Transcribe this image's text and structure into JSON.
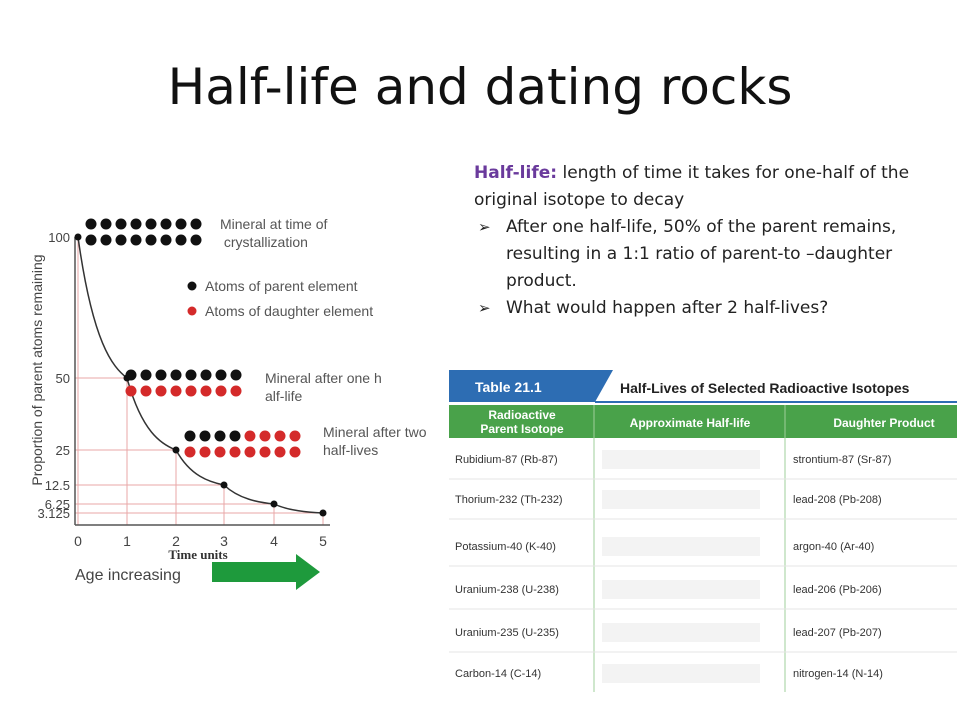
{
  "title": "Half-life and dating rocks",
  "definition": {
    "term": "Half-life:",
    "text": " length of time it takes for one-half of the original isotope to decay"
  },
  "bullets": [
    "After one half-life, 50% of the parent remains, resulting in a 1:1 ratio of parent-to –daughter product.",
    "What would happen after 2 half-lives?"
  ],
  "colors": {
    "parent_atom": "#111111",
    "daughter_atom": "#d42a2a",
    "arrow": "#1e9a3c",
    "table_header": "#2d6db3",
    "table_subheader": "#49a24a",
    "definition_term": "#6a3a9c"
  },
  "chart_data": {
    "type": "line",
    "ylabel": "Proportion of parent atoms remaining",
    "xlabel": "Time units",
    "x_caption": "Age increasing",
    "x": [
      0,
      1,
      2,
      3,
      4,
      5
    ],
    "values": [
      100,
      50,
      25,
      12.5,
      6.25,
      3.125
    ],
    "x_ticks": [
      "0",
      "1",
      "2",
      "3",
      "4",
      "5"
    ],
    "y_ticks": [
      "100",
      "50",
      "25",
      "12.5",
      "6.25",
      "3.125"
    ],
    "ylim": [
      0,
      100
    ],
    "annotations": [
      {
        "text": "Mineral at time of crystallization",
        "parent": 16,
        "daughter": 0
      },
      {
        "text": "Mineral after one half-life",
        "parent": 8,
        "daughter": 8
      },
      {
        "text": "Mineral after two half-lives",
        "parent": 4,
        "daughter": 12
      }
    ],
    "legend": [
      {
        "text": "Atoms of parent element",
        "color": "#111111"
      },
      {
        "text": "Atoms of daughter element",
        "color": "#d42a2a"
      }
    ]
  },
  "table": {
    "number": "Table 21.1",
    "caption": "Half-Lives of Selected Radioactive Isotopes",
    "headers": [
      "Radioactive Parent Isotope",
      "Approximate Half-life",
      "Daughter Product"
    ],
    "rows": [
      [
        "Rubidium-87 (Rb-87)",
        "",
        "strontium-87 (Sr-87)"
      ],
      [
        "Thorium-232 (Th-232)",
        "",
        "lead-208 (Pb-208)"
      ],
      [
        "Potassium-40 (K-40)",
        "",
        "argon-40 (Ar-40)"
      ],
      [
        "Uranium-238 (U-238)",
        "",
        "lead-206 (Pb-206)"
      ],
      [
        "Uranium-235 (U-235)",
        "",
        "lead-207 (Pb-207)"
      ],
      [
        "Carbon-14 (C-14)",
        "",
        "nitrogen-14 (N-14)"
      ]
    ]
  }
}
